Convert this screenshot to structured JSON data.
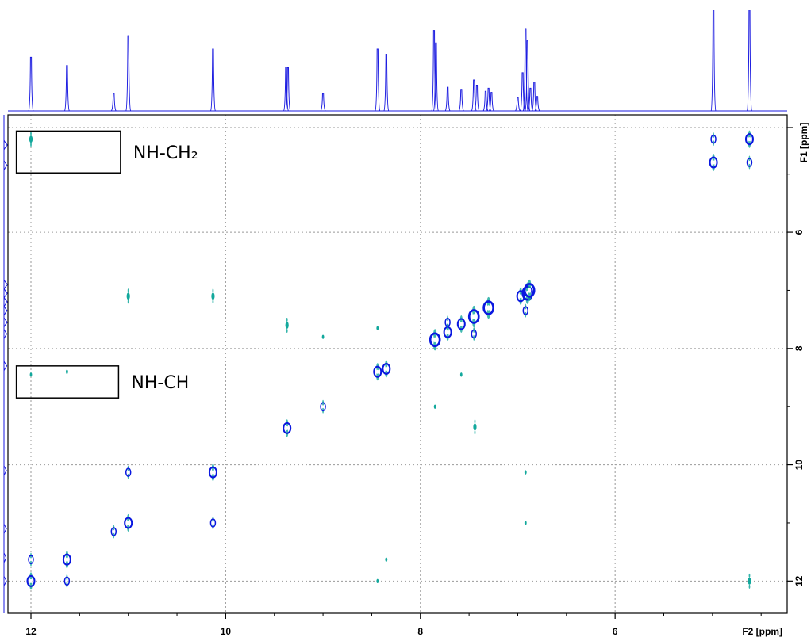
{
  "chart_data": {
    "type": "scatter",
    "subtype": "2D NMR contour spectrum (homonuclear correlation) with 1D projections",
    "x_axis": {
      "label": "F2 [ppm]",
      "range": [
        12.0,
        4.2
      ],
      "reversed": true,
      "ticks": [
        12,
        10,
        8,
        6
      ],
      "minor_ticks": [
        11.5,
        11,
        10.5,
        9.5,
        9,
        8.5,
        7.5,
        7,
        6.5,
        5.5,
        5,
        4.5
      ]
    },
    "y_axis": {
      "label": "F1 [ppm]",
      "range": [
        4.2,
        12.2
      ],
      "reversed": false,
      "ticks": [
        6,
        8,
        10,
        12
      ],
      "minor_ticks": [
        5,
        7,
        9,
        11
      ]
    },
    "grid": true,
    "grid_style": "dotted",
    "colors": {
      "positive": "#0a18e0",
      "negative": "#12a89c",
      "projection": "#1a1ae0"
    },
    "top_projection_peaks": [
      {
        "ppm": 12.0,
        "height": 0.52
      },
      {
        "ppm": 11.63,
        "height": 0.44
      },
      {
        "ppm": 11.15,
        "height": 0.17
      },
      {
        "ppm": 11.0,
        "height": 0.73
      },
      {
        "ppm": 10.13,
        "height": 0.6
      },
      {
        "ppm": 9.38,
        "height": 0.42
      },
      {
        "ppm": 9.36,
        "height": 0.42
      },
      {
        "ppm": 9.0,
        "height": 0.17
      },
      {
        "ppm": 8.44,
        "height": 0.6
      },
      {
        "ppm": 8.35,
        "height": 0.55
      },
      {
        "ppm": 7.86,
        "height": 0.78
      },
      {
        "ppm": 7.84,
        "height": 0.66
      },
      {
        "ppm": 7.72,
        "height": 0.23
      },
      {
        "ppm": 7.58,
        "height": 0.21
      },
      {
        "ppm": 7.45,
        "height": 0.3
      },
      {
        "ppm": 7.42,
        "height": 0.25
      },
      {
        "ppm": 7.33,
        "height": 0.19
      },
      {
        "ppm": 7.3,
        "height": 0.22
      },
      {
        "ppm": 7.27,
        "height": 0.18
      },
      {
        "ppm": 7.0,
        "height": 0.13
      },
      {
        "ppm": 6.95,
        "height": 0.37
      },
      {
        "ppm": 6.92,
        "height": 0.8
      },
      {
        "ppm": 6.9,
        "height": 0.68
      },
      {
        "ppm": 6.87,
        "height": 0.22
      },
      {
        "ppm": 6.83,
        "height": 0.28
      },
      {
        "ppm": 6.8,
        "height": 0.14
      },
      {
        "ppm": 4.99,
        "height": 0.98
      },
      {
        "ppm": 4.62,
        "height": 0.98
      }
    ],
    "left_projection_peaks": [
      {
        "ppm": 4.5,
        "height": 0.5
      },
      {
        "ppm": 4.85,
        "height": 0.45
      },
      {
        "ppm": 6.9,
        "height": 0.55
      },
      {
        "ppm": 7.05,
        "height": 0.5
      },
      {
        "ppm": 7.2,
        "height": 0.5
      },
      {
        "ppm": 7.35,
        "height": 0.45
      },
      {
        "ppm": 7.55,
        "height": 0.5
      },
      {
        "ppm": 7.75,
        "height": 0.4
      },
      {
        "ppm": 8.3,
        "height": 0.4
      },
      {
        "ppm": 10.1,
        "height": 0.35
      },
      {
        "ppm": 11.1,
        "height": 0.35
      },
      {
        "ppm": 11.6,
        "height": 0.3
      },
      {
        "ppm": 12.0,
        "height": 0.35
      }
    ],
    "peaks": [
      {
        "x": 12.0,
        "y": 4.4,
        "sign": "negative",
        "size": 1
      },
      {
        "x": 4.99,
        "y": 4.4,
        "sign": "positive",
        "size": 1
      },
      {
        "x": 4.62,
        "y": 4.4,
        "sign": "positive",
        "size": 2
      },
      {
        "x": 4.99,
        "y": 4.8,
        "sign": "positive",
        "size": 2
      },
      {
        "x": 4.62,
        "y": 4.8,
        "sign": "positive",
        "size": 1
      },
      {
        "x": 11.0,
        "y": 7.1,
        "sign": "negative",
        "size": 1
      },
      {
        "x": 10.13,
        "y": 7.1,
        "sign": "negative",
        "size": 1
      },
      {
        "x": 9.37,
        "y": 7.6,
        "sign": "negative",
        "size": 1
      },
      {
        "x": 9.0,
        "y": 7.8,
        "sign": "negative",
        "size": 0
      },
      {
        "x": 8.44,
        "y": 7.65,
        "sign": "negative",
        "size": 0
      },
      {
        "x": 8.44,
        "y": 8.4,
        "sign": "positive",
        "size": 2
      },
      {
        "x": 8.35,
        "y": 8.35,
        "sign": "positive",
        "size": 2
      },
      {
        "x": 7.85,
        "y": 7.85,
        "sign": "positive",
        "size": 3
      },
      {
        "x": 7.72,
        "y": 7.72,
        "sign": "positive",
        "size": 2
      },
      {
        "x": 7.58,
        "y": 7.58,
        "sign": "positive",
        "size": 2
      },
      {
        "x": 7.45,
        "y": 7.45,
        "sign": "positive",
        "size": 3
      },
      {
        "x": 7.3,
        "y": 7.3,
        "sign": "positive",
        "size": 3
      },
      {
        "x": 6.97,
        "y": 7.1,
        "sign": "positive",
        "size": 2
      },
      {
        "x": 6.9,
        "y": 7.05,
        "sign": "positive",
        "size": 3
      },
      {
        "x": 6.88,
        "y": 7.0,
        "sign": "positive",
        "size": 3
      },
      {
        "x": 6.92,
        "y": 7.35,
        "sign": "positive",
        "size": 1
      },
      {
        "x": 7.45,
        "y": 7.75,
        "sign": "positive",
        "size": 1
      },
      {
        "x": 7.72,
        "y": 7.55,
        "sign": "positive",
        "size": 1
      },
      {
        "x": 7.58,
        "y": 8.45,
        "sign": "negative",
        "size": 0
      },
      {
        "x": 7.85,
        "y": 9.0,
        "sign": "negative",
        "size": 0
      },
      {
        "x": 7.44,
        "y": 9.35,
        "sign": "negative",
        "size": 1
      },
      {
        "x": 12.0,
        "y": 8.45,
        "sign": "negative",
        "size": 0
      },
      {
        "x": 11.63,
        "y": 8.4,
        "sign": "negative",
        "size": 0
      },
      {
        "x": 9.37,
        "y": 9.37,
        "sign": "positive",
        "size": 2
      },
      {
        "x": 9.0,
        "y": 9.0,
        "sign": "positive",
        "size": 1
      },
      {
        "x": 11.0,
        "y": 10.13,
        "sign": "positive",
        "size": 1
      },
      {
        "x": 10.13,
        "y": 10.13,
        "sign": "positive",
        "size": 2
      },
      {
        "x": 6.92,
        "y": 10.13,
        "sign": "negative",
        "size": 0
      },
      {
        "x": 11.15,
        "y": 11.15,
        "sign": "positive",
        "size": 1
      },
      {
        "x": 11.0,
        "y": 11.0,
        "sign": "positive",
        "size": 2
      },
      {
        "x": 10.13,
        "y": 11.0,
        "sign": "positive",
        "size": 1
      },
      {
        "x": 6.92,
        "y": 11.0,
        "sign": "negative",
        "size": 0
      },
      {
        "x": 12.0,
        "y": 11.63,
        "sign": "positive",
        "size": 1
      },
      {
        "x": 11.63,
        "y": 11.63,
        "sign": "positive",
        "size": 2
      },
      {
        "x": 8.35,
        "y": 11.63,
        "sign": "negative",
        "size": 0
      },
      {
        "x": 12.0,
        "y": 12.0,
        "sign": "positive",
        "size": 2
      },
      {
        "x": 11.63,
        "y": 12.0,
        "sign": "positive",
        "size": 1
      },
      {
        "x": 8.44,
        "y": 12.0,
        "sign": "negative",
        "size": 0
      },
      {
        "x": 4.62,
        "y": 12.0,
        "sign": "negative",
        "size": 1
      }
    ],
    "annotations": [
      {
        "label": "NH-CH₂",
        "box_x": [
          12.15,
          11.08
        ],
        "box_y": [
          4.26,
          4.98
        ]
      },
      {
        "label": "NH-CH",
        "box_x": [
          12.15,
          11.1
        ],
        "box_y": [
          8.3,
          8.85
        ]
      }
    ]
  }
}
